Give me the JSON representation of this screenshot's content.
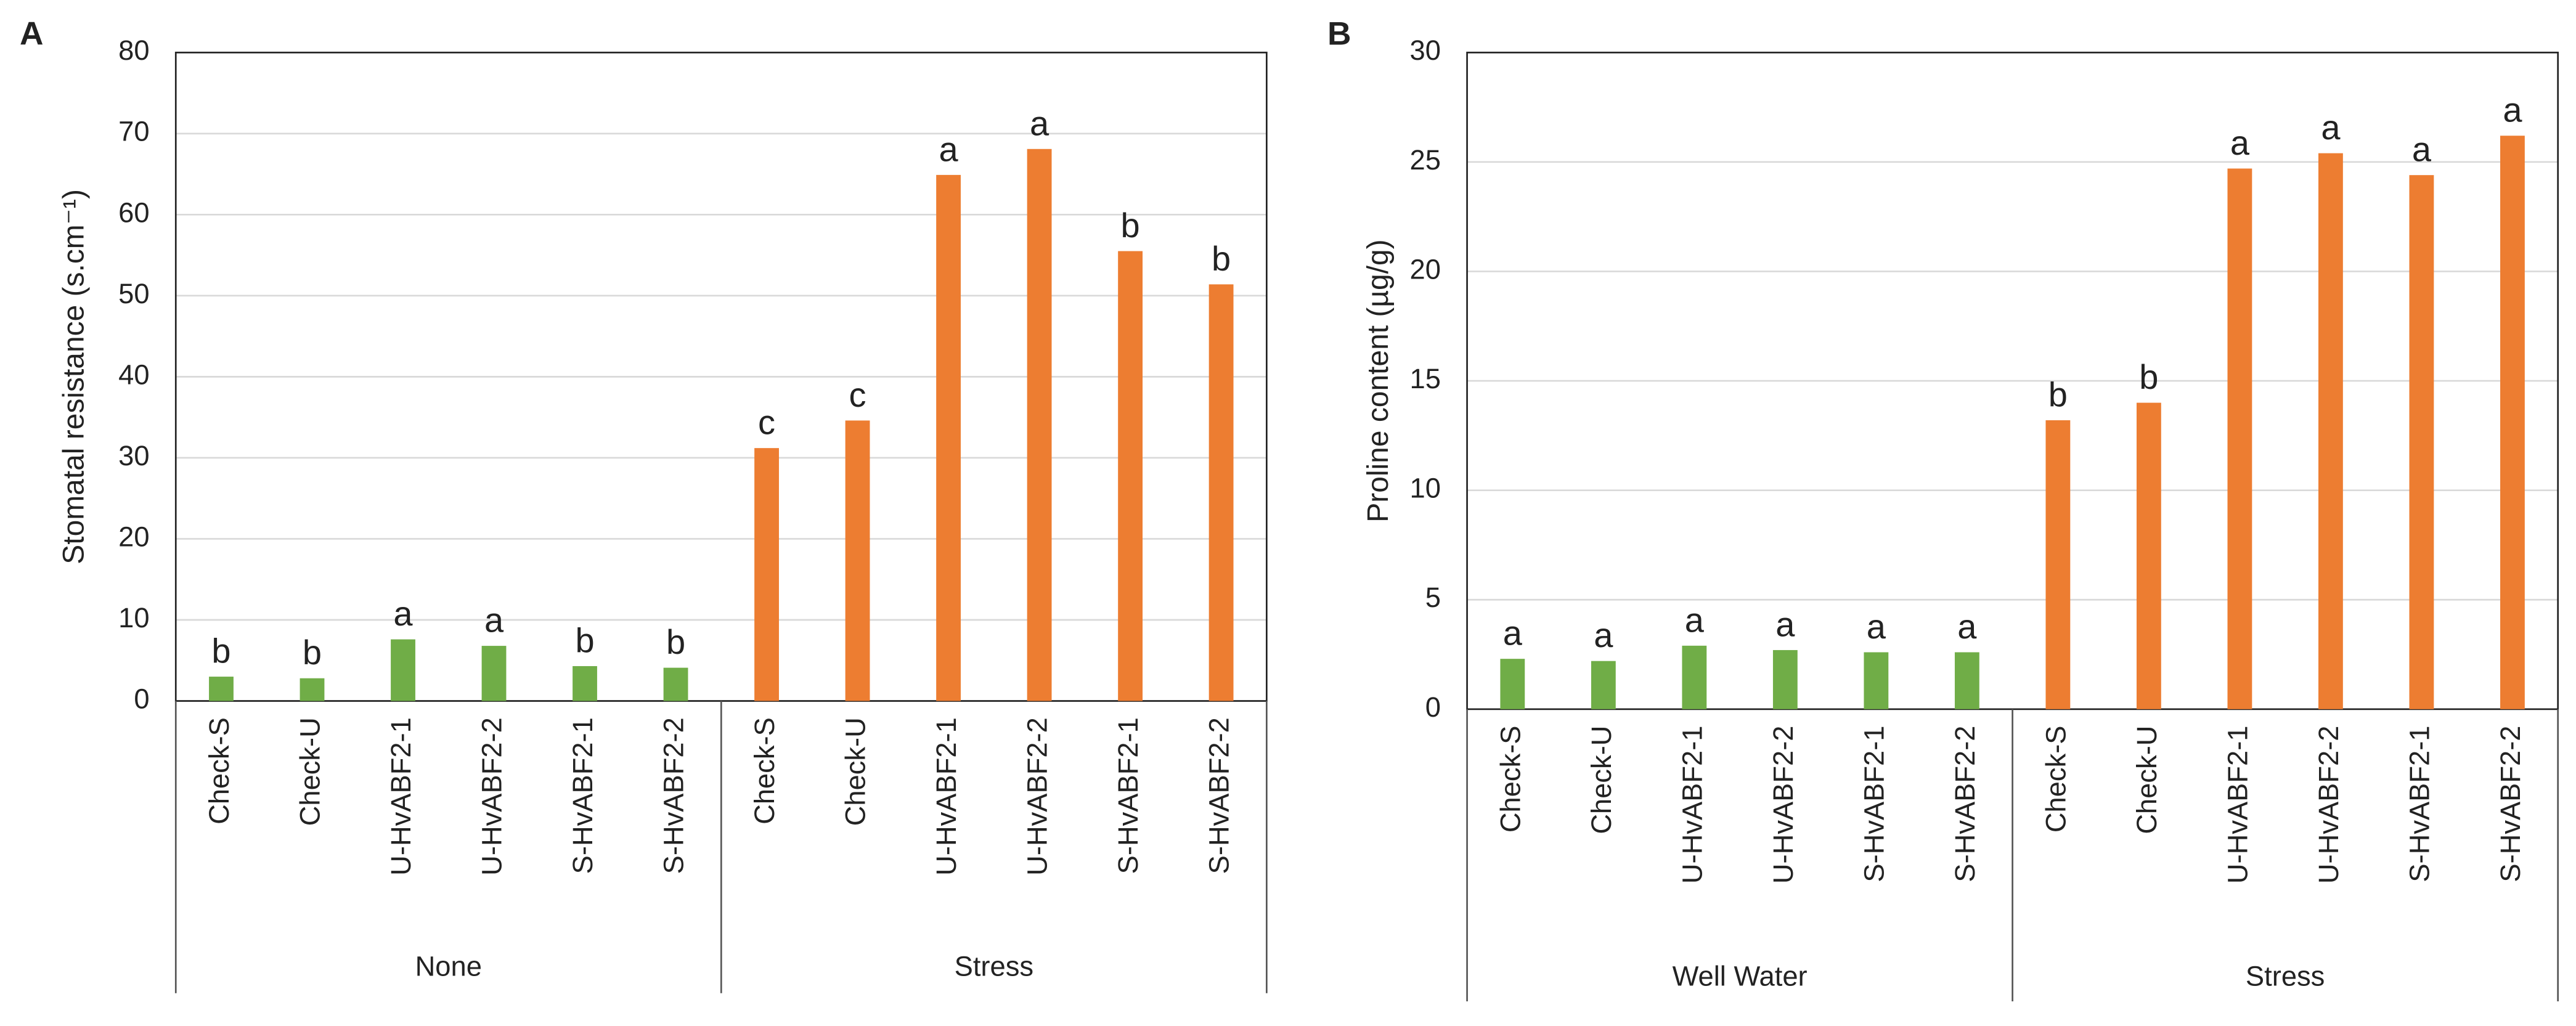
{
  "chart_data": [
    {
      "type": "bar",
      "panel": "A",
      "y_label": "Stomatal resistance (s.cm⁻¹)",
      "categories": [
        "Check-S",
        "Check-U",
        "U-HvABF2-1",
        "U-HvABF2-2",
        "S-HvABF2-1",
        "S-HvABF2-2",
        "Check-S",
        "Check-U",
        "U-HvABF2-1",
        "U-HvABF2-2",
        "S-HvABF2-1",
        "S-HvABF2-2"
      ],
      "values": [
        3,
        2.8,
        7.6,
        6.8,
        4.3,
        4.1,
        31.2,
        34.6,
        64.9,
        68.1,
        55.5,
        51.4
      ],
      "letters": [
        "b",
        "b",
        "a",
        "a",
        "b",
        "b",
        "c",
        "c",
        "a",
        "a",
        "b",
        "b"
      ],
      "colors": [
        "#70ad47",
        "#70ad47",
        "#70ad47",
        "#70ad47",
        "#70ad47",
        "#70ad47",
        "#ed7d31",
        "#ed7d31",
        "#ed7d31",
        "#ed7d31",
        "#ed7d31",
        "#ed7d31"
      ],
      "group_labels": [
        "None",
        "Stress"
      ],
      "ylim": [
        0,
        80
      ],
      "yticks": [
        0,
        10,
        20,
        30,
        40,
        50,
        60,
        70,
        80
      ],
      "grid": true
    },
    {
      "type": "bar",
      "panel": "B",
      "y_label": "Proline content (µg/g)",
      "categories": [
        "Check-S",
        "Check-U",
        "U-HvABF2-1",
        "U-HvABF2-2",
        "S-HvABF2-1",
        "S-HvABF2-2",
        "Check-S",
        "Check-U",
        "U-HvABF2-1",
        "U-HvABF2-2",
        "S-HvABF2-1",
        "S-HvABF2-2"
      ],
      "values": [
        2.3,
        2.2,
        2.9,
        2.7,
        2.6,
        2.6,
        13.2,
        14.0,
        24.7,
        25.4,
        24.4,
        26.2
      ],
      "letters": [
        "a",
        "a",
        "a",
        "a",
        "a",
        "a",
        "b",
        "b",
        "a",
        "a",
        "a",
        "a"
      ],
      "colors": [
        "#70ad47",
        "#70ad47",
        "#70ad47",
        "#70ad47",
        "#70ad47",
        "#70ad47",
        "#ed7d31",
        "#ed7d31",
        "#ed7d31",
        "#ed7d31",
        "#ed7d31",
        "#ed7d31"
      ],
      "group_labels": [
        "Well Water",
        "Stress"
      ],
      "ylim": [
        0,
        30
      ],
      "yticks": [
        0,
        5,
        10,
        15,
        20,
        25,
        30
      ],
      "grid": true
    }
  ]
}
